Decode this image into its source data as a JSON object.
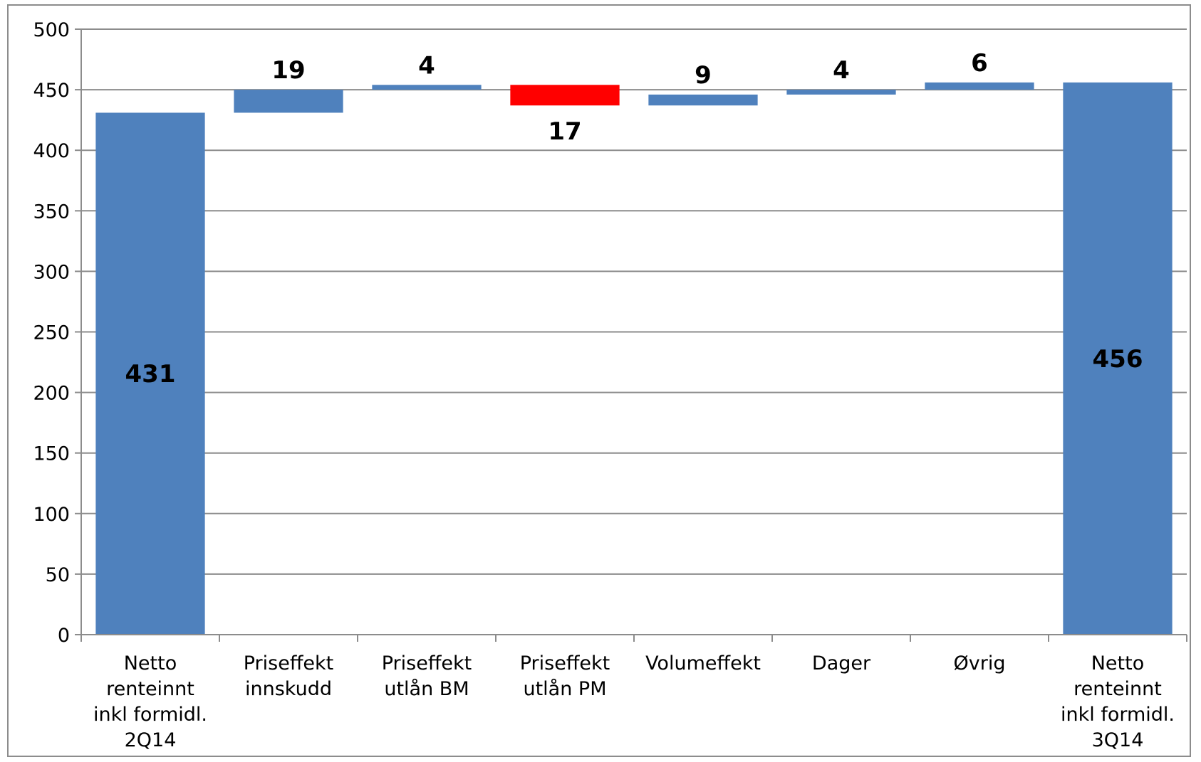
{
  "chart_data": {
    "type": "bar",
    "subtype": "waterfall",
    "categories": [
      [
        "Netto",
        "renteinnt",
        "inkl formidl.",
        "2Q14"
      ],
      [
        "Priseffekt",
        "innskudd"
      ],
      [
        "Priseffekt",
        "utlån BM"
      ],
      [
        "Priseffekt",
        "utlån PM"
      ],
      [
        "Volumeffekt"
      ],
      [
        "Dager"
      ],
      [
        "Øvrig"
      ],
      [
        "Netto",
        "renteinnt",
        "inkl formidl.",
        "3Q14"
      ]
    ],
    "bars": [
      {
        "kind": "total",
        "start": 0,
        "end": 431,
        "label": "431",
        "color": "#4f81bd"
      },
      {
        "kind": "delta",
        "start": 431,
        "end": 450,
        "label": "19",
        "color": "#4f81bd"
      },
      {
        "kind": "delta",
        "start": 450,
        "end": 454,
        "label": "4",
        "color": "#4f81bd"
      },
      {
        "kind": "delta",
        "start": 454,
        "end": 437,
        "label": "17",
        "color": "#ff0000"
      },
      {
        "kind": "delta",
        "start": 437,
        "end": 446,
        "label": "9",
        "color": "#4f81bd"
      },
      {
        "kind": "delta",
        "start": 446,
        "end": 450,
        "label": "4",
        "color": "#4f81bd"
      },
      {
        "kind": "delta",
        "start": 450,
        "end": 456,
        "label": "6",
        "color": "#4f81bd"
      },
      {
        "kind": "total",
        "start": 0,
        "end": 456,
        "label": "456",
        "color": "#4f81bd"
      }
    ],
    "yticks": [
      "0",
      "50",
      "100",
      "150",
      "200",
      "250",
      "300",
      "350",
      "400",
      "450",
      "500"
    ],
    "ylim": [
      0,
      500
    ],
    "grid": true,
    "colors": {
      "increase": "#4f81bd",
      "decrease": "#ff0000",
      "grid": "#8c8c8c"
    }
  }
}
